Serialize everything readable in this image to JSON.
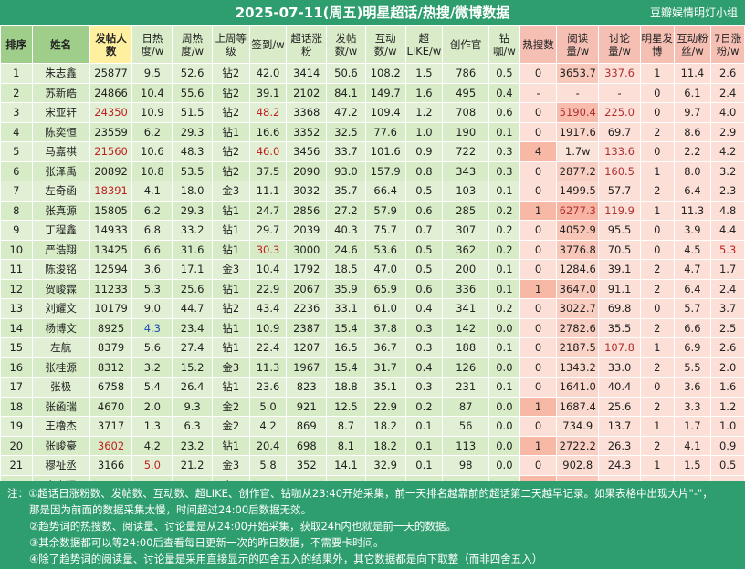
{
  "title": "2025-07-11(周五)明星超话/热搜/微博数据",
  "source": "豆瓣娱情明灯小组",
  "headers": [
    "排序",
    "姓名",
    "发帖人数",
    "日热度/w",
    "周热度/w",
    "上周等级",
    "签到/w",
    "超话涨粉",
    "发帖数/w",
    "互动数/w",
    "超LIKE/w",
    "创作官",
    "钻咖/w",
    "热搜数",
    "阅读量/w",
    "讨论量/w",
    "明星发博",
    "互动粉丝/w",
    "7日涨粉/w"
  ],
  "rows": [
    [
      "1",
      "朱志鑫",
      "25877",
      "9.5",
      "52.6",
      "钻2",
      "42.0",
      "3414",
      "50.6",
      "108.2",
      "1.5",
      "786",
      "0.5",
      "0",
      "3653.7",
      "337.6",
      "1",
      "11.4",
      "2.6"
    ],
    [
      "2",
      "苏新皓",
      "24866",
      "10.4",
      "55.6",
      "钻2",
      "39.1",
      "2102",
      "84.1",
      "149.7",
      "1.6",
      "495",
      "0.4",
      "-",
      "-",
      "-",
      "0",
      "6.1",
      "2.4"
    ],
    [
      "3",
      "宋亚轩",
      "24350",
      "10.9",
      "51.5",
      "钻2",
      "48.2",
      "3368",
      "47.2",
      "109.4",
      "1.2",
      "708",
      "0.6",
      "0",
      "5190.4",
      "225.0",
      "0",
      "9.7",
      "4.0"
    ],
    [
      "4",
      "陈奕恒",
      "23559",
      "6.2",
      "29.3",
      "钻1",
      "16.6",
      "3352",
      "32.5",
      "77.6",
      "1.0",
      "190",
      "0.1",
      "0",
      "1917.6",
      "69.7",
      "2",
      "8.6",
      "2.9"
    ],
    [
      "5",
      "马嘉祺",
      "21560",
      "10.6",
      "48.3",
      "钻2",
      "46.0",
      "3456",
      "33.7",
      "101.6",
      "0.9",
      "722",
      "0.3",
      "4",
      "1.7w",
      "133.6",
      "0",
      "2.2",
      "4.2"
    ],
    [
      "6",
      "张泽禹",
      "20892",
      "10.8",
      "53.5",
      "钻2",
      "37.5",
      "2090",
      "93.0",
      "157.9",
      "0.8",
      "343",
      "0.3",
      "0",
      "2877.2",
      "160.5",
      "1",
      "8.0",
      "3.2"
    ],
    [
      "7",
      "左奇函",
      "18391",
      "4.1",
      "18.0",
      "金3",
      "11.1",
      "3032",
      "35.7",
      "66.4",
      "0.5",
      "103",
      "0.1",
      "0",
      "1499.5",
      "57.7",
      "2",
      "6.4",
      "2.3"
    ],
    [
      "8",
      "张真源",
      "15805",
      "6.2",
      "29.3",
      "钻1",
      "24.7",
      "2856",
      "27.2",
      "57.9",
      "0.6",
      "285",
      "0.2",
      "1",
      "6277.3",
      "119.9",
      "1",
      "11.3",
      "4.8"
    ],
    [
      "9",
      "丁程鑫",
      "14933",
      "6.8",
      "33.2",
      "钻1",
      "29.7",
      "2039",
      "40.3",
      "75.7",
      "0.7",
      "307",
      "0.2",
      "0",
      "4052.9",
      "95.5",
      "0",
      "3.9",
      "4.4"
    ],
    [
      "10",
      "严浩翔",
      "13425",
      "6.6",
      "31.6",
      "钻1",
      "30.3",
      "3000",
      "24.6",
      "53.6",
      "0.5",
      "362",
      "0.2",
      "0",
      "3776.8",
      "70.5",
      "0",
      "4.5",
      "5.3"
    ],
    [
      "11",
      "陈浚铭",
      "12594",
      "3.6",
      "17.1",
      "金3",
      "10.4",
      "1792",
      "18.5",
      "47.0",
      "0.5",
      "200",
      "0.1",
      "0",
      "1284.6",
      "39.1",
      "2",
      "4.7",
      "1.7"
    ],
    [
      "12",
      "贺峻霖",
      "11233",
      "5.3",
      "25.6",
      "钻1",
      "22.9",
      "2067",
      "35.9",
      "65.9",
      "0.6",
      "336",
      "0.1",
      "1",
      "3647.0",
      "91.1",
      "2",
      "6.4",
      "2.4"
    ],
    [
      "13",
      "刘耀文",
      "10179",
      "9.0",
      "44.7",
      "钻2",
      "43.4",
      "2236",
      "33.1",
      "61.0",
      "0.4",
      "341",
      "0.2",
      "0",
      "3022.7",
      "69.8",
      "0",
      "5.7",
      "3.7"
    ],
    [
      "14",
      "杨博文",
      "8925",
      "4.3",
      "23.4",
      "钻1",
      "10.9",
      "2387",
      "15.4",
      "37.8",
      "0.3",
      "142",
      "0.0",
      "0",
      "2782.6",
      "35.5",
      "2",
      "6.6",
      "2.5"
    ],
    [
      "15",
      "左航",
      "8379",
      "5.6",
      "27.4",
      "钻1",
      "22.4",
      "1207",
      "16.5",
      "36.7",
      "0.3",
      "188",
      "0.1",
      "0",
      "2187.5",
      "107.8",
      "1",
      "6.9",
      "2.6"
    ],
    [
      "16",
      "张桂源",
      "8312",
      "3.2",
      "15.2",
      "金3",
      "11.3",
      "1967",
      "15.4",
      "31.7",
      "0.4",
      "126",
      "0.0",
      "0",
      "1343.2",
      "33.0",
      "2",
      "5.5",
      "2.0"
    ],
    [
      "17",
      "张极",
      "6758",
      "5.4",
      "26.4",
      "钻1",
      "23.6",
      "823",
      "18.8",
      "35.1",
      "0.3",
      "231",
      "0.1",
      "0",
      "1641.0",
      "40.4",
      "0",
      "3.6",
      "1.6"
    ],
    [
      "18",
      "张函瑞",
      "4670",
      "2.0",
      "9.3",
      "金2",
      "5.0",
      "921",
      "12.5",
      "22.9",
      "0.2",
      "87",
      "0.0",
      "1",
      "1687.4",
      "25.6",
      "2",
      "3.3",
      "1.2"
    ],
    [
      "19",
      "王橹杰",
      "3717",
      "1.3",
      "6.3",
      "金2",
      "4.2",
      "869",
      "8.7",
      "18.2",
      "0.1",
      "56",
      "0.0",
      "0",
      "734.9",
      "13.7",
      "1",
      "1.7",
      "1.0"
    ],
    [
      "20",
      "张峻豪",
      "3602",
      "4.2",
      "23.2",
      "钻1",
      "20.4",
      "698",
      "8.1",
      "18.2",
      "0.1",
      "113",
      "0.0",
      "1",
      "2722.2",
      "26.3",
      "2",
      "4.1",
      "0.9"
    ],
    [
      "21",
      "穆祉丞",
      "3166",
      "5.0",
      "21.2",
      "金3",
      "5.8",
      "352",
      "14.1",
      "32.9",
      "0.1",
      "98",
      "0.0",
      "0",
      "902.8",
      "24.3",
      "1",
      "1.5",
      "0.5"
    ],
    [
      "22",
      "余宇涵",
      "2751",
      "2.2",
      "10.5",
      "金2",
      "13.2",
      "485",
      "4.2",
      "13.5",
      "0.1",
      "118",
      "0.0",
      "2",
      "3837.5",
      "51.1",
      "2",
      "3.3",
      "2.0"
    ],
    [
      "23",
      "邓佳鑫",
      "2549",
      "1.9",
      "10.1",
      "金2",
      "4.7",
      "357",
      "6.9",
      "15.2",
      "0.1",
      "71",
      "0.0",
      "0",
      "1075.5",
      "17.6",
      "1",
      "1.2",
      "0.5"
    ]
  ],
  "notes": [
    "注：①超话日涨粉数、发帖数、互动数、超LIKE、创作官、钻咖从23:40开始采集，前一天排名越靠前的超话第二天越早记录。如果表格中出现大片\"-\"，",
    "那是因为前面的数据采集太慢，时间超过24:00后数据无效。",
    "②趋势词的热搜数、阅读量、讨论量是从24:00开始采集，获取24h内也就是前一天的数据。",
    "③其余数据都可以等24:00后查看每日更新一次的昨日数据，不需要卡时间。",
    "④除了趋势词的阅读量、讨论量是采用直接显示的四舍五入的结果外，其它数据都是向下取整（而非四舍五入）"
  ],
  "colors": {
    "header_green": "#2e9e6e",
    "red_text": "#c02020",
    "blue_text": "#2050b0"
  }
}
